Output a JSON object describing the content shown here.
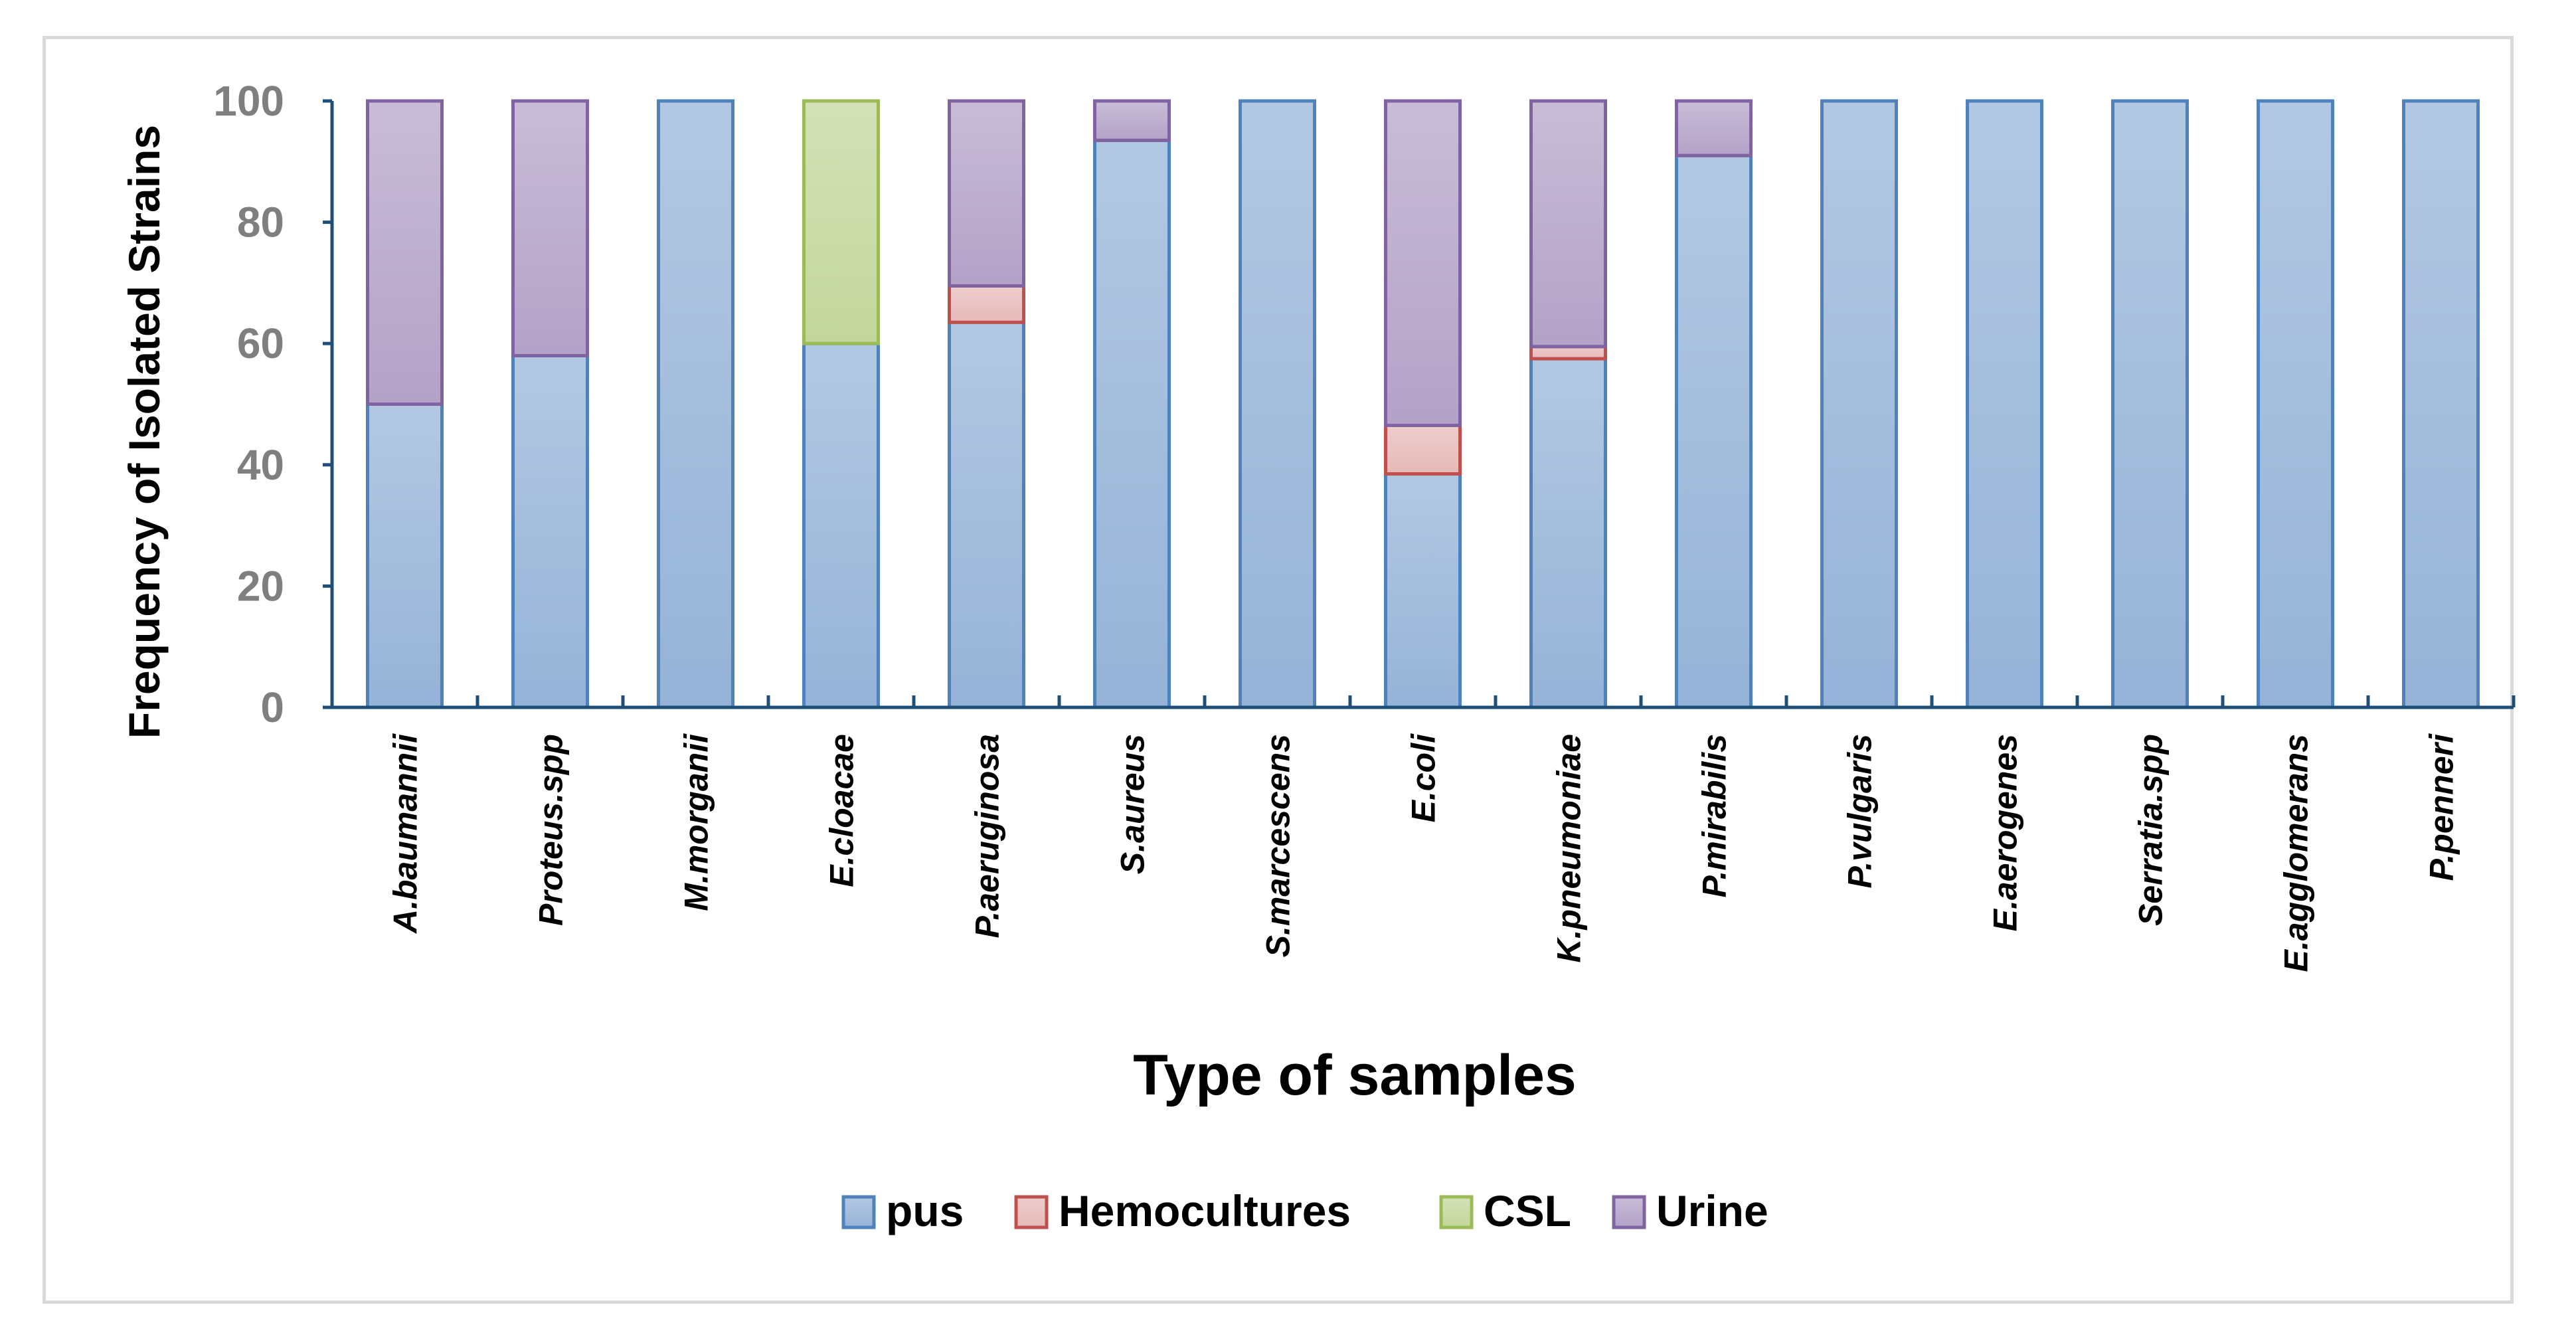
{
  "chart_data": {
    "type": "bar",
    "stacked": true,
    "title": "",
    "xlabel": "Type of samples",
    "ylabel": "Frequency of Isolated Strains",
    "ylim": [
      0,
      100
    ],
    "yticks": [
      0,
      20,
      40,
      60,
      80,
      100
    ],
    "legend_position": "bottom",
    "categories": [
      "A.baumannii",
      "Proteus.spp",
      "M.morganii",
      "E.cloacae",
      "P.aeruginosa",
      "S.aureus",
      "S.marcescens",
      "E.coli",
      "K.pneumoniae",
      "P.mirabilis",
      "P.vulgaris",
      "E.aerogenes",
      "Serratia.spp",
      "E.agglomerans",
      "P.penneri"
    ],
    "series": [
      {
        "name": "pus",
        "fill": "#95B3D7",
        "stroke": "#4F81BD",
        "values": [
          50,
          58,
          100,
          60,
          63.5,
          93.5,
          100,
          38.5,
          57.5,
          91,
          100,
          100,
          100,
          100,
          100
        ]
      },
      {
        "name": "Hemocultures",
        "fill": "#E6B9B8",
        "stroke": "#C0504D",
        "values": [
          0,
          0,
          0,
          0,
          6,
          0,
          0,
          8,
          2,
          0,
          0,
          0,
          0,
          0,
          0
        ]
      },
      {
        "name": "CSL",
        "fill": "#C3D69B",
        "stroke": "#9BBB59",
        "values": [
          0,
          0,
          0,
          40,
          0,
          0,
          0,
          0,
          0,
          0,
          0,
          0,
          0,
          0,
          0
        ]
      },
      {
        "name": "Urine",
        "fill": "#B3A2C7",
        "stroke": "#8064A2",
        "values": [
          50,
          42,
          0,
          0,
          30.5,
          6.5,
          0,
          53.5,
          40.5,
          9,
          0,
          0,
          0,
          0,
          0
        ]
      }
    ],
    "axis_color": "#1F4E79"
  }
}
